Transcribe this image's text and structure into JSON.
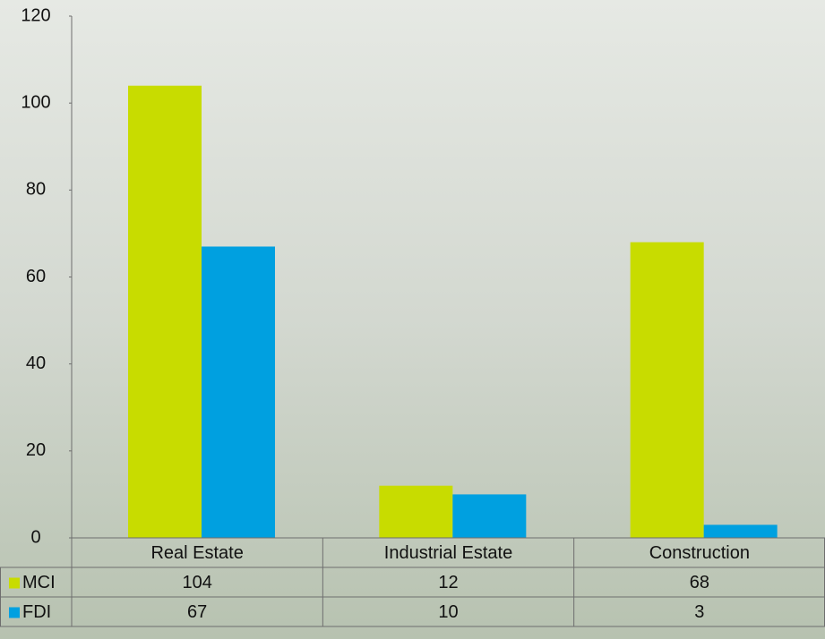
{
  "chart_data": {
    "type": "bar",
    "categories": [
      "Real Estate",
      "Industrial Estate",
      "Construction"
    ],
    "series": [
      {
        "name": "MCI",
        "color": "#c8dc00",
        "values": [
          104,
          12,
          68
        ]
      },
      {
        "name": "FDI",
        "color": "#00a0e0",
        "values": [
          67,
          10,
          3
        ]
      }
    ],
    "ylim": [
      0,
      120
    ],
    "yticks": [
      0,
      20,
      40,
      60,
      80,
      100,
      120
    ],
    "data_table": true
  }
}
